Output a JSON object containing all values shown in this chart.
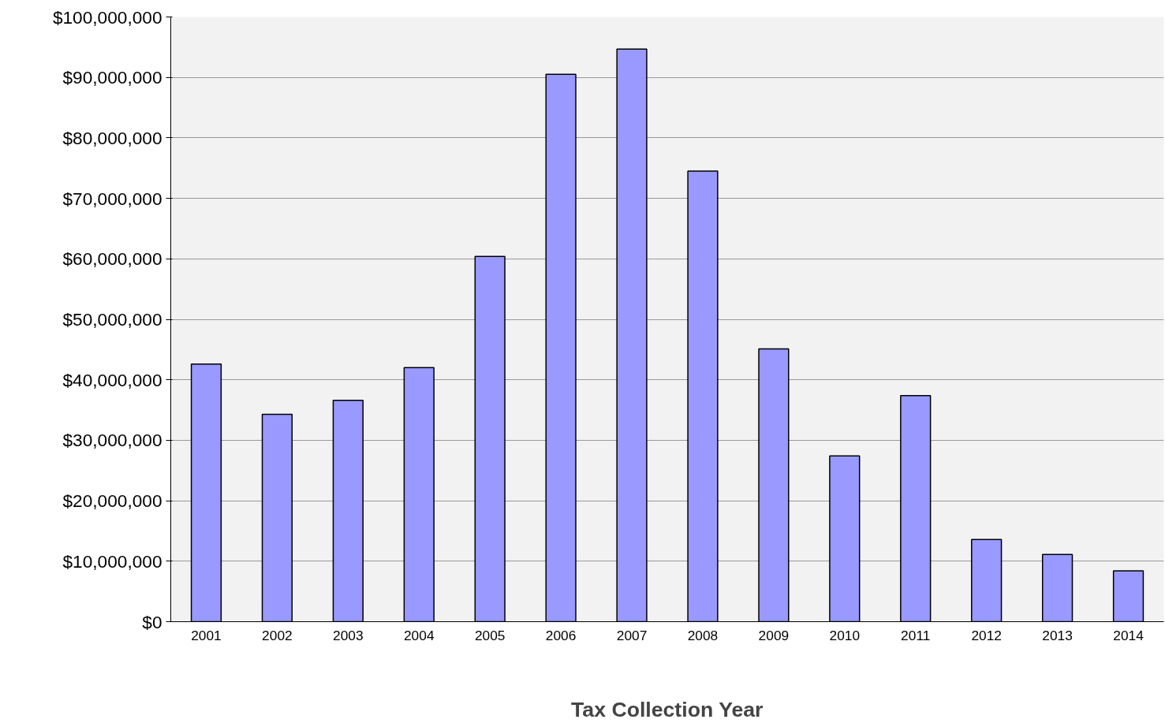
{
  "chart_data": {
    "type": "bar",
    "xlabel": "Tax Collection Year",
    "categories": [
      "2001",
      "2002",
      "2003",
      "2004",
      "2005",
      "2006",
      "2007",
      "2008",
      "2009",
      "2010",
      "2011",
      "2012",
      "2013",
      "2014"
    ],
    "values": [
      42600000,
      34300000,
      36600000,
      42000000,
      60400000,
      90500000,
      94700000,
      74500000,
      45100000,
      27400000,
      37400000,
      13600000,
      11100000,
      8400000
    ],
    "color": "#9999ff",
    "ylim": [
      0,
      100000000
    ],
    "yticks": [
      {
        "value": 0,
        "label": "$0"
      },
      {
        "value": 10000000,
        "label": "$10,000,000"
      },
      {
        "value": 20000000,
        "label": "$20,000,000"
      },
      {
        "value": 30000000,
        "label": "$30,000,000"
      },
      {
        "value": 40000000,
        "label": "$40,000,000"
      },
      {
        "value": 50000000,
        "label": "$50,000,000"
      },
      {
        "value": 60000000,
        "label": "$60,000,000"
      },
      {
        "value": 70000000,
        "label": "$70,000,000"
      },
      {
        "value": 80000000,
        "label": "$80,000,000"
      },
      {
        "value": 90000000,
        "label": "$90,000,000"
      },
      {
        "value": 100000000,
        "label": "$100,000,000"
      }
    ],
    "grid": "y"
  }
}
